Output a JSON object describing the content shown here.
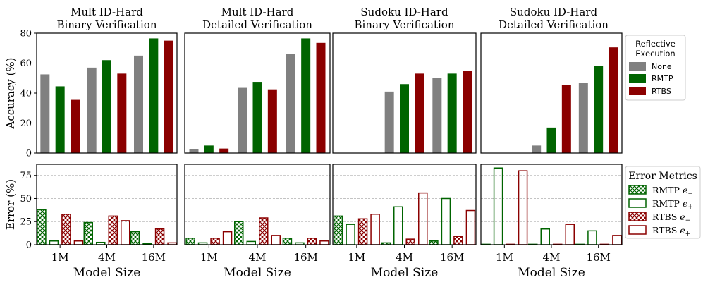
{
  "colors": {
    "none": "#808080",
    "rmtp": "#006400",
    "rtbs": "#8b0000",
    "grid": "#b0b0b0"
  },
  "chart_data": {
    "type": "bar",
    "categories": [
      "1M",
      "4M",
      "16M"
    ],
    "xlabel": "Model Size",
    "top_ylabel": "Accuracy (%)",
    "bottom_ylabel": "Error (%)",
    "top_ylim": [
      0,
      80
    ],
    "top_yticks": [
      "0",
      "20",
      "40",
      "60",
      "80"
    ],
    "bottom_ylim": [
      0,
      87
    ],
    "bottom_yticks": [
      "0",
      "25",
      "50",
      "75"
    ],
    "panels": [
      {
        "title_line1": "Mult ID-Hard",
        "title_line2": "Binary Verification",
        "accuracy": {
          "None": [
            52.5,
            57,
            65
          ],
          "RMTP": [
            44.5,
            62,
            76.5
          ],
          "RTBS": [
            35.5,
            53,
            75
          ]
        },
        "error": {
          "RMTP_e_minus": [
            38,
            24,
            14
          ],
          "RMTP_e_plus": [
            4,
            2.5,
            1
          ],
          "RTBS_e_minus": [
            33,
            31,
            17
          ],
          "RTBS_e_plus": [
            4,
            26,
            2
          ]
        }
      },
      {
        "title_line1": "Mult ID-Hard",
        "title_line2": "Detailed Verification",
        "accuracy": {
          "None": [
            2.5,
            43.5,
            66
          ],
          "RMTP": [
            5,
            47.5,
            76.5
          ],
          "RTBS": [
            3,
            42.5,
            73.5
          ]
        },
        "error": {
          "RMTP_e_minus": [
            7,
            25,
            7
          ],
          "RMTP_e_plus": [
            2,
            3.5,
            2
          ],
          "RTBS_e_minus": [
            7,
            29,
            7
          ],
          "RTBS_e_plus": [
            14,
            10,
            4
          ]
        }
      },
      {
        "title_line1": "Sudoku ID-Hard",
        "title_line2": "Binary Verification",
        "accuracy": {
          "None": [
            0,
            41,
            50
          ],
          "RMTP": [
            0,
            46,
            53
          ],
          "RTBS": [
            0,
            53,
            55
          ]
        },
        "error": {
          "RMTP_e_minus": [
            31,
            2,
            4
          ],
          "RMTP_e_plus": [
            22,
            41,
            50
          ],
          "RTBS_e_minus": [
            28,
            6,
            9
          ],
          "RTBS_e_plus": [
            33,
            56,
            37
          ]
        }
      },
      {
        "title_line1": "Sudoku ID-Hard",
        "title_line2": "Detailed Verification",
        "accuracy": {
          "None": [
            0,
            5,
            47
          ],
          "RMTP": [
            0,
            17,
            58
          ],
          "RTBS": [
            0,
            45.5,
            70.5
          ]
        },
        "error": {
          "RMTP_e_minus": [
            0,
            0,
            0
          ],
          "RMTP_e_plus": [
            83,
            17,
            15
          ],
          "RTBS_e_minus": [
            0,
            0,
            0
          ],
          "RTBS_e_plus": [
            80,
            22,
            10
          ]
        }
      }
    ],
    "legend_top": {
      "title_line1": "Reflective",
      "title_line2": "Execution",
      "entries": [
        "None",
        "RMTP",
        "RTBS"
      ]
    },
    "legend_bottom": {
      "title": "Error Metrics",
      "entries": [
        {
          "name": "RMTP",
          "sym": "e",
          "sub": "−"
        },
        {
          "name": "RMTP",
          "sym": "e",
          "sub": "+"
        },
        {
          "name": "RTBS",
          "sym": "e",
          "sub": "−"
        },
        {
          "name": "RTBS",
          "sym": "e",
          "sub": "+"
        }
      ]
    }
  }
}
